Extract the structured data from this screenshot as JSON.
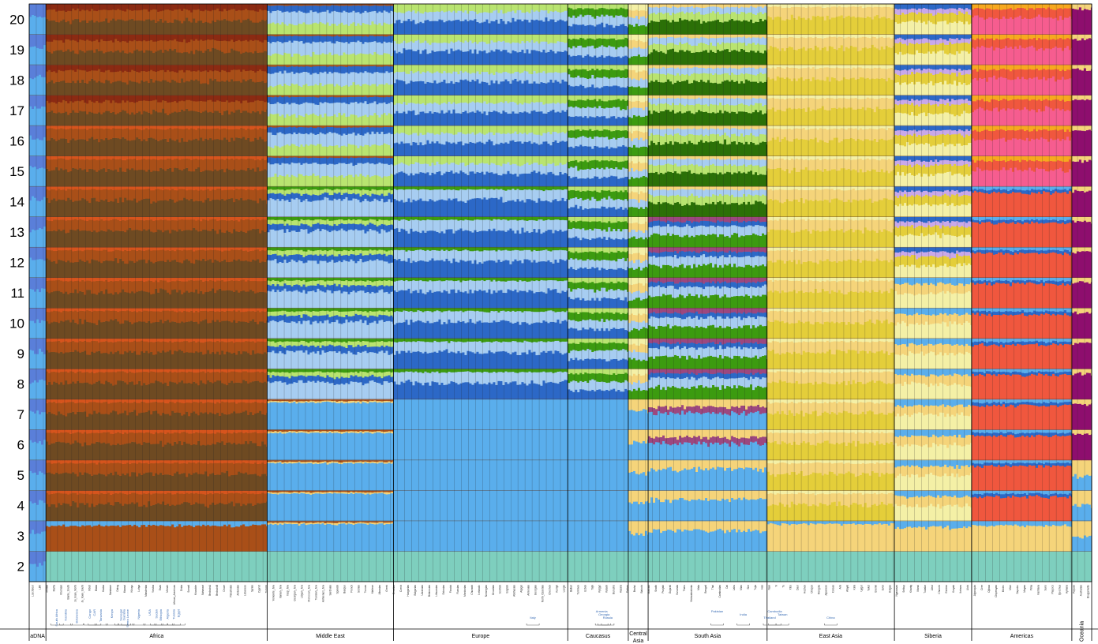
{
  "chart_data": {
    "type": "area",
    "description_note": "",
    "y_ticks": [
      "2",
      "3",
      "4",
      "5",
      "6",
      "7",
      "8",
      "9",
      "10",
      "11",
      "12",
      "13",
      "14",
      "15",
      "16",
      "17",
      "18",
      "19",
      "20"
    ],
    "regions": [
      {
        "name": "aDNA",
        "weight": 0.016
      },
      {
        "name": "Africa",
        "weight": 0.212
      },
      {
        "name": "Middle East",
        "weight": 0.121
      },
      {
        "name": "Europe",
        "weight": 0.167
      },
      {
        "name": "Caucasus",
        "weight": 0.058
      },
      {
        "name": "Central Asia",
        "weight": 0.019
      },
      {
        "name": "South Asia",
        "weight": 0.114
      },
      {
        "name": "East Asia",
        "weight": 0.122
      },
      {
        "name": "Siberia",
        "weight": 0.074
      },
      {
        "name": "Americas",
        "weight": 0.096
      },
      {
        "name": "Oceania",
        "weight": 0.019
      }
    ],
    "country_labels": [
      "South Africa",
      "Namibia",
      "Botswana",
      "Congo",
      "CAR",
      "Tanzania",
      "Kenya",
      "Senegal",
      "Gambia",
      "Sierra Leone",
      "Nigeria",
      "USA",
      "Sudan",
      "Ethiopia",
      "Algeria",
      "Tunisia",
      "Egypt",
      "Italy",
      "Armenia",
      "Georgia",
      "Russia",
      "Pakistan",
      "India",
      "Thailand",
      "Cambodia",
      "Taiwan",
      "China"
    ],
    "population_labels": [
      "Loschbour",
      "LBK",
      "Motala",
      "Mal'ta",
      "Khomani",
      "Bantu_South",
      "Ju_hoan_North",
      "Ju_hoan_South",
      "Mbuti",
      "Biaka",
      "Hadza",
      "Sandawe",
      "Datog",
      "Maasai",
      "Kikuyu",
      "Luhya",
      "Mandenka",
      "Yoruba",
      "Esan",
      "Mende",
      "African_American",
      "Dinka",
      "Somali",
      "Mozabite",
      "Saharawi",
      "BedouinA",
      "BedouinB",
      "Druze",
      "Palestinian",
      "Jordanian",
      "Lebanese",
      "Syrian",
      "Cypriot",
      "Turkish",
      "Yemenite_Jew",
      "Iranian_Jew",
      "Iraqi_Jew",
      "Georgian_Jew",
      "Libyan_Jew",
      "Moroccan_Jew",
      "Tunisian_Jew",
      "Ashkenazi_Jew",
      "Sardinian",
      "Spanish",
      "Basque",
      "French",
      "Sicilian",
      "Tuscan",
      "Maltese",
      "Albanian",
      "Greek",
      "Croatian",
      "Czech",
      "Hungarian",
      "Bulgarian",
      "Ukrainian",
      "Belarusian",
      "Lithuanian",
      "Estonian",
      "Finnish",
      "Russian",
      "Mordovian",
      "Chuvash",
      "Icelandic",
      "Norwegian",
      "Orcadian",
      "Scottish",
      "English",
      "Abkhasian",
      "Adygei",
      "Armenian",
      "Georgian",
      "North_Ossetian",
      "Chechen",
      "Kumyk",
      "Lezgin",
      "Balkar",
      "Turkmen",
      "Uzbek",
      "Tajik",
      "Kyrgyz",
      "Kalash",
      "Burusho",
      "Hazara",
      "Pathan",
      "Brahui",
      "Balochi",
      "Makrani",
      "Sindhi",
      "Punjabi",
      "Gujarati",
      "Kusunda",
      "Tharu",
      "Vishwabrahmin",
      "Mala",
      "Bengali",
      "Thai",
      "Cambodian",
      "Dai",
      "Lahu",
      "Miao",
      "She",
      "Tujia",
      "Han",
      "Naxi",
      "Yi",
      "Tu",
      "Xibo",
      "Daur",
      "Hezhen",
      "Oroqen",
      "Mongola",
      "Japanese",
      "Korean",
      "Ami",
      "Atayal",
      "Kinh",
      "Uygur",
      "Yakut",
      "Evenki",
      "Even",
      "Dolgan",
      "Nganasan",
      "Selkup",
      "Khanty",
      "Mansi",
      "Tubalar",
      "Aleut",
      "Chukchi",
      "Eskimo",
      "Koryak",
      "Itelmen",
      "Ulchi",
      "Algonquin",
      "Cree",
      "Ojibwa",
      "Chipewyan",
      "Mixtec",
      "Mixe",
      "Zapotec",
      "Mayan",
      "Pima",
      "Karitiana",
      "Surui",
      "Piapoco",
      "Quechua",
      "Aymara",
      "Papuan",
      "Australian",
      "Bougainville"
    ],
    "series_colors": [
      "#7ecfbe",
      "#5aaeec",
      "#f5d47a",
      "#f0573e",
      "#f65d8f",
      "#f4f0a6",
      "#c9a9e9",
      "#2c68c7",
      "#5a7fd9",
      "#a7cdf1",
      "#b9e470",
      "#3c9b10",
      "#2b7007",
      "#9c477f",
      "#a94f18",
      "#d7541d",
      "#6e4a22",
      "#c85a2a",
      "#8b2a12",
      "#e0a04c",
      "#e4ce3a",
      "#3fd58a",
      "#8e0e6e",
      "#f7a91f"
    ]
  }
}
